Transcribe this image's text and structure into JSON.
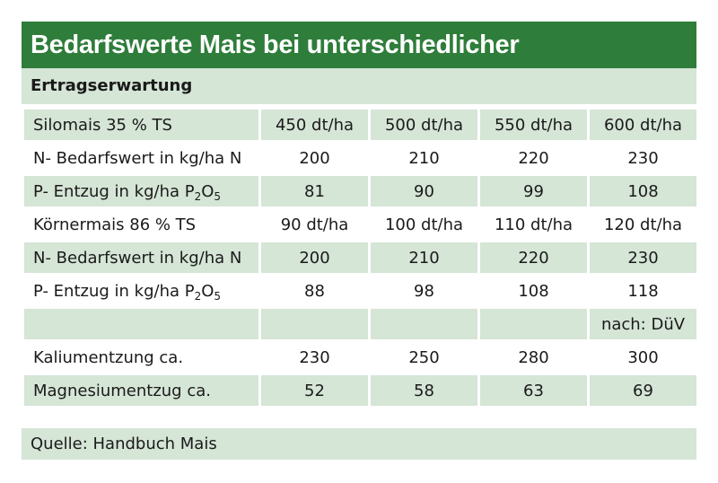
{
  "title": "Bedarfswerte Mais bei unterschiedlicher",
  "subtitle": "Ertragserwartung",
  "rows": [
    {
      "label": "Silomais 35 % TS",
      "values": [
        "450 dt/ha",
        "500 dt/ha",
        "550 dt/ha",
        "600 dt/ha"
      ]
    },
    {
      "label": "N- Bedarfswert in kg/ha N",
      "values": [
        "200",
        "210",
        "220",
        "230"
      ]
    },
    {
      "label_prefix": "P- Entzug in kg/ha P",
      "sub1": "2",
      "label_mid": "O",
      "sub2": "5",
      "values": [
        "81",
        "90",
        "99",
        "108"
      ]
    },
    {
      "label": "Körnermais 86 % TS",
      "values": [
        "90 dt/ha",
        "100 dt/ha",
        "110 dt/ha",
        "120 dt/ha"
      ]
    },
    {
      "label": "N- Bedarfswert in kg/ha N",
      "values": [
        "200",
        "210",
        "220",
        "230"
      ]
    },
    {
      "label_prefix": "P- Entzug in kg/ha P",
      "sub1": "2",
      "label_mid": "O",
      "sub2": "5",
      "values": [
        "88",
        "98",
        "108",
        "118"
      ]
    },
    {
      "label": "",
      "values": [
        "",
        "",
        "",
        "nach: DüV"
      ]
    },
    {
      "label": "Kaliumentzung ca.",
      "values": [
        "230",
        "250",
        "280",
        "300"
      ]
    },
    {
      "label": "Magnesiumentzug ca.",
      "values": [
        "52",
        "58",
        "63",
        "69"
      ]
    }
  ],
  "footer": "Quelle: Handbuch Mais"
}
